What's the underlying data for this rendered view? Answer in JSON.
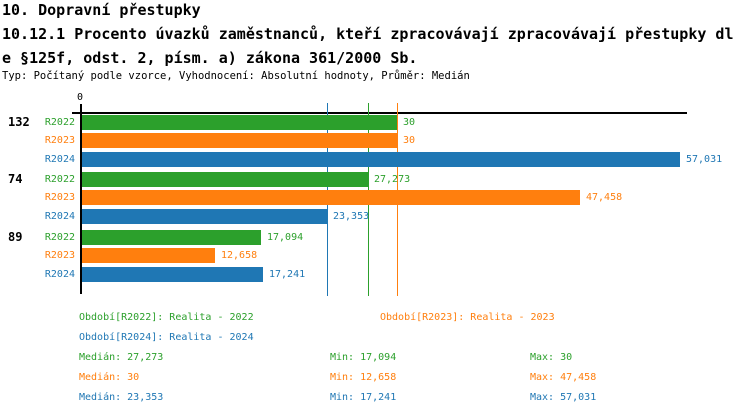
{
  "header": {
    "title": "10. Dopravní přestupky",
    "subtitle_line1": "10.12.1 Procento úvazků zaměstnanců, kteří zpracovávají zpracovávají přestupky dl",
    "subtitle_line2": "e §125f, odst. 2, písm. a) zákona 361/2000 Sb.",
    "meta": "Typ: Počítaný podle vzorce, Vyhodnocení: Absolutní hodnoty, Průměr: Medián"
  },
  "legend": {
    "r2022": "Období[R2022]: Realita - 2022",
    "r2023": "Období[R2023]: Realita - 2023",
    "r2024": "Období[R2024]: Realita - 2024"
  },
  "stats": {
    "rows": [
      {
        "series": "R2022",
        "median": "Medián: 27,273",
        "min": "Min: 17,094",
        "max": "Max: 30",
        "color": "#2ca02c"
      },
      {
        "series": "R2023",
        "median": "Medián: 30",
        "min": "Min: 12,658",
        "max": "Max: 47,458",
        "color": "#ff7f0e"
      },
      {
        "series": "R2024",
        "median": "Medián: 23,353",
        "min": "Min: 17,241",
        "max": "Max: 57,031",
        "color": "#1f77b4"
      }
    ]
  },
  "chart_data": {
    "type": "bar",
    "orientation": "horizontal",
    "title": "10.12.1 Procento úvazků zaměstnanců, kteří zpracovávají zpracovávají přestupky dle §125f, odst. 2, písm. a) zákona 361/2000 Sb.",
    "x_axis": {
      "origin_label": "0",
      "min": 0,
      "max_value_shown": 57.031
    },
    "series_colors": {
      "R2022": "#2ca02c",
      "R2023": "#ff7f0e",
      "R2024": "#1f77b4"
    },
    "groups": [
      {
        "label": "132",
        "bars": [
          {
            "series": "R2022",
            "value": 30,
            "display": "30"
          },
          {
            "series": "R2023",
            "value": 30,
            "display": "30"
          },
          {
            "series": "R2024",
            "value": 57.031,
            "display": "57,031"
          }
        ]
      },
      {
        "label": "74",
        "bars": [
          {
            "series": "R2022",
            "value": 27.273,
            "display": "27,273"
          },
          {
            "series": "R2023",
            "value": 47.458,
            "display": "47,458"
          },
          {
            "series": "R2024",
            "value": 23.353,
            "display": "23,353"
          }
        ]
      },
      {
        "label": "89",
        "bars": [
          {
            "series": "R2022",
            "value": 17.094,
            "display": "17,094"
          },
          {
            "series": "R2023",
            "value": 12.658,
            "display": "12,658"
          },
          {
            "series": "R2024",
            "value": 17.241,
            "display": "17,241"
          }
        ]
      }
    ],
    "median_lines": [
      {
        "series": "R2024",
        "value": 23.353
      },
      {
        "series": "R2022",
        "value": 27.273
      },
      {
        "series": "R2023",
        "value": 30
      }
    ],
    "stats_numeric": {
      "R2022": {
        "median": 27.273,
        "min": 17.094,
        "max": 30
      },
      "R2023": {
        "median": 30,
        "min": 12.658,
        "max": 47.458
      },
      "R2024": {
        "median": 23.353,
        "min": 17.241,
        "max": 57.031
      }
    }
  }
}
